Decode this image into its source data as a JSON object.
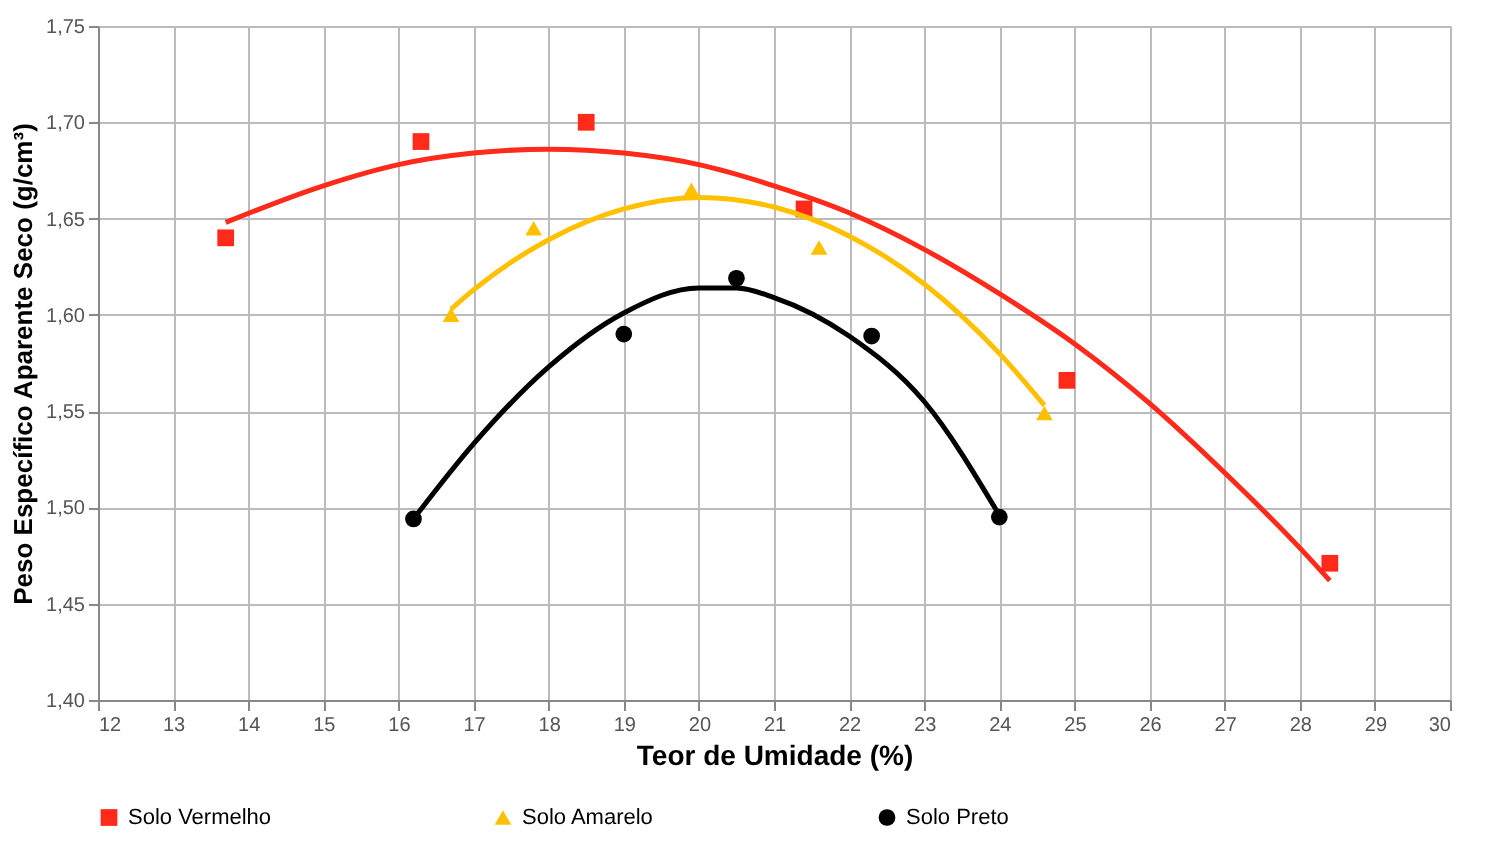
{
  "chart_data": {
    "type": "scatter",
    "xlabel": "Teor de Umidade (%)",
    "ylabel": "Peso Específico Aparente Seco (g/cm³)",
    "xlim": [
      12,
      30
    ],
    "xticks": [
      12,
      13,
      14,
      15,
      16,
      17,
      18,
      19,
      20,
      21,
      22,
      23,
      24,
      25,
      26,
      27,
      28,
      29,
      30
    ],
    "ylim": [
      1.4,
      1.75
    ],
    "yticks": [
      {
        "value": 1.4,
        "label": "1,40"
      },
      {
        "value": 1.45,
        "label": "1,45"
      },
      {
        "value": 1.5,
        "label": "1,50"
      },
      {
        "value": 1.55,
        "label": "1,55"
      },
      {
        "value": 1.6,
        "label": "1,60"
      },
      {
        "value": 1.65,
        "label": "1,65"
      },
      {
        "value": 1.7,
        "label": "1,70"
      },
      {
        "value": 1.75,
        "label": "1,75"
      }
    ],
    "grid": true,
    "legend": "bottom",
    "series": [
      {
        "type": "line",
        "color": "#ff2a1a",
        "marker": "none",
        "x": [
          13.7,
          15,
          16,
          17,
          18,
          19,
          20,
          21,
          22,
          23,
          24,
          25,
          26,
          27,
          28,
          28.4
        ],
        "values": [
          1.648,
          1.667,
          1.678,
          1.684,
          1.686,
          1.684,
          1.678,
          1.667,
          1.653,
          1.634,
          1.611,
          1.585,
          1.554,
          1.518,
          1.479,
          1.462
        ]
      },
      {
        "type": "line",
        "color": "#ffc000",
        "marker": "none",
        "x": [
          16.7,
          17,
          18,
          19,
          20,
          21,
          22,
          23,
          24,
          24.6
        ],
        "values": [
          1.603,
          1.613,
          1.639,
          1.655,
          1.661,
          1.656,
          1.641,
          1.616,
          1.58,
          1.553
        ]
      },
      {
        "type": "line",
        "color": "#000000",
        "marker": "none",
        "x": [
          16.2,
          17,
          18,
          19,
          20,
          20.5,
          21,
          22,
          23,
          24
        ],
        "values": [
          1.494,
          1.533,
          1.573,
          1.601,
          1.614,
          1.614,
          1.609,
          1.589,
          1.555,
          1.496
        ]
      },
      {
        "name": "Solo Vermelho",
        "color": "#ff2a1a",
        "marker": "square",
        "x": [
          13.7,
          16.3,
          18.5,
          21.4,
          24.9,
          28.4
        ],
        "values": [
          1.64,
          1.69,
          1.7,
          1.655,
          1.566,
          1.471
        ]
      },
      {
        "name": "Solo Amarelo",
        "color": "#ffc000",
        "marker": "triangle",
        "x": [
          16.7,
          17.8,
          19.9,
          21.6,
          24.6
        ],
        "values": [
          1.6,
          1.645,
          1.665,
          1.635,
          1.549
        ]
      },
      {
        "name": "Solo Preto",
        "color": "#000000",
        "marker": "circle",
        "x": [
          16.2,
          19.0,
          20.5,
          22.3,
          24.0
        ],
        "values": [
          1.494,
          1.59,
          1.619,
          1.589,
          1.495
        ]
      }
    ]
  }
}
